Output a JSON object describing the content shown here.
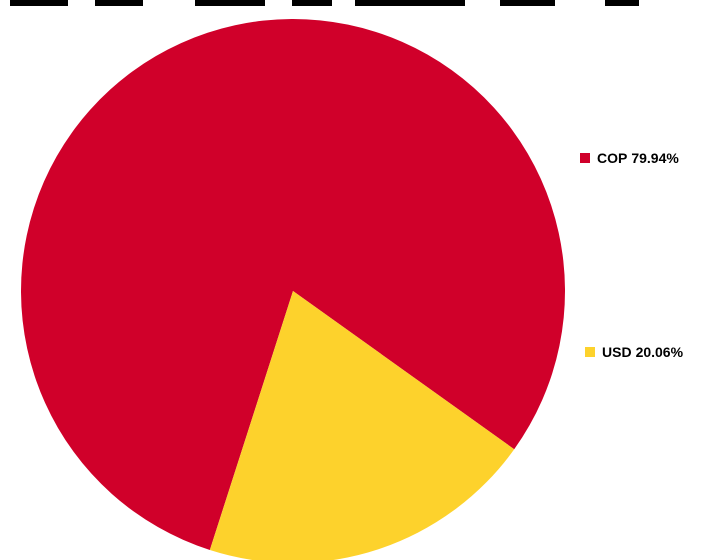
{
  "chart_data": {
    "type": "pie",
    "title": "",
    "slices": [
      {
        "label": "COP",
        "value": 79.94,
        "value_text": "79.94%",
        "color": "#d0002a"
      },
      {
        "label": "USD",
        "value": 20.06,
        "value_text": "20.06%",
        "color": "#fdd22c"
      }
    ],
    "legend_position": "right"
  }
}
